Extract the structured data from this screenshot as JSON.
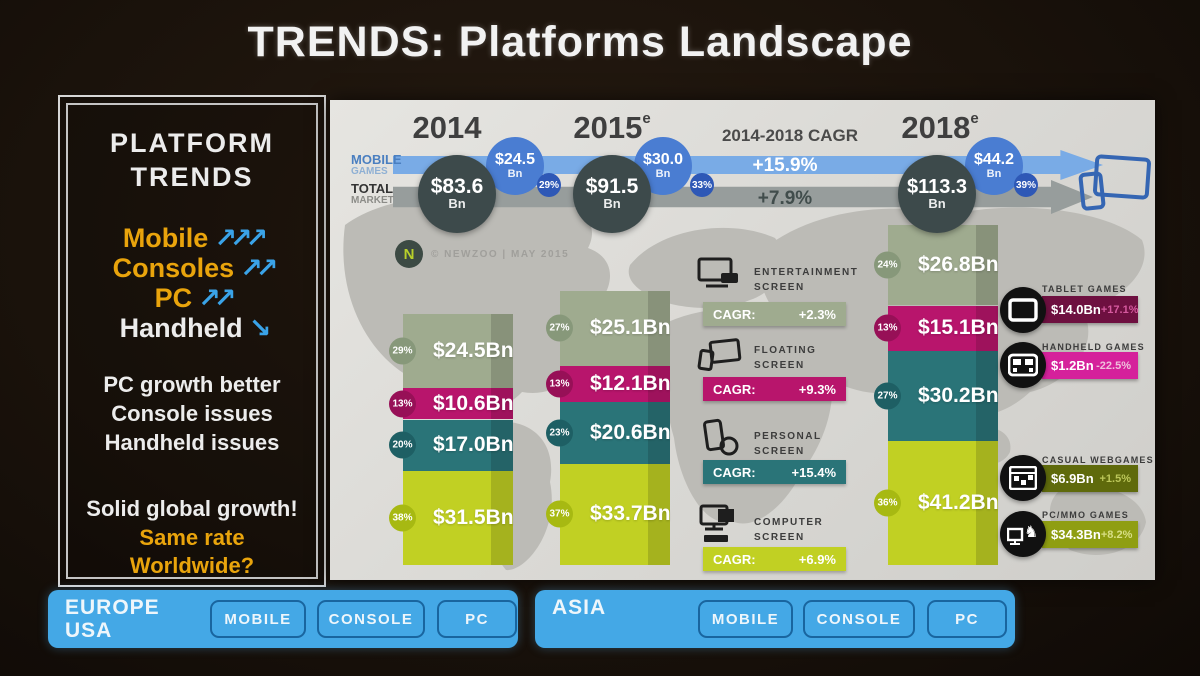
{
  "title": "TRENDS: Platforms Landscape",
  "sidebar": {
    "heading_line1": "PLATFORM",
    "heading_line2": "TRENDS",
    "platforms": [
      {
        "label": "Mobile",
        "style": "orange",
        "arrows": [
          "up",
          "up",
          "up"
        ]
      },
      {
        "label": "Consoles",
        "style": "orange",
        "arrows": [
          "up",
          "up"
        ]
      },
      {
        "label": "PC",
        "style": "orange",
        "arrows": [
          "up",
          "up"
        ]
      },
      {
        "label": "Handheld",
        "style": "white",
        "arrows": [
          "down"
        ]
      }
    ],
    "notes": [
      "PC growth better",
      "Console issues",
      "Handheld issues"
    ],
    "summary": [
      {
        "text": "Solid global growth!",
        "style": "white"
      },
      {
        "text": "Same rate",
        "style": "orange"
      },
      {
        "text": "Worldwide?",
        "style": "orange"
      }
    ]
  },
  "chart_data": {
    "type": "bar",
    "stacked": true,
    "source": "© NEWZOO | MAY 2015",
    "band_labels": {
      "mobile": [
        "MOBILE",
        "GAMES"
      ],
      "total": [
        "TOTAL",
        "MARKET"
      ]
    },
    "cagr_heading": "2014-2018 CAGR",
    "mobile_cagr": "+15.9%",
    "total_cagr": "+7.9%",
    "years": [
      {
        "label": "2014",
        "sup": "",
        "total_bn": 83.6,
        "total_display": "$83.6",
        "unit": "Bn",
        "mobile_display": "$24.5",
        "mobile_share": "29%"
      },
      {
        "label": "2015",
        "sup": "e",
        "total_bn": 91.5,
        "total_display": "$91.5",
        "unit": "Bn",
        "mobile_display": "$30.0",
        "mobile_share": "33%"
      },
      {
        "label": "2018",
        "sup": "e",
        "total_bn": 113.3,
        "total_display": "$113.3",
        "unit": "Bn",
        "mobile_display": "$44.2",
        "mobile_share": "39%"
      }
    ],
    "segments": [
      {
        "name": [
          "ENTERTAINMENT",
          "SCREEN"
        ],
        "icon": "entertainment-screen",
        "cagr_label": "CAGR:",
        "cagr": "+2.3%",
        "color": "#9fab8f",
        "badge_color": "#87987a",
        "values_bn": [
          24.5,
          25.1,
          26.8
        ],
        "labels": [
          "$24.5Bn",
          "$25.1Bn",
          "$26.8Bn"
        ],
        "shares": [
          "29%",
          "27%",
          "24%"
        ]
      },
      {
        "name": [
          "FLOATING",
          "SCREEN"
        ],
        "icon": "floating-screen",
        "cagr_label": "CAGR:",
        "cagr": "+9.3%",
        "color": "#b8156c",
        "badge_color": "#971057",
        "values_bn": [
          10.6,
          12.1,
          15.1
        ],
        "labels": [
          "$10.6Bn",
          "$12.1Bn",
          "$15.1Bn"
        ],
        "shares": [
          "13%",
          "13%",
          "13%"
        ]
      },
      {
        "name": [
          "PERSONAL",
          "SCREEN"
        ],
        "icon": "personal-screen",
        "cagr_label": "CAGR:",
        "cagr": "+15.4%",
        "color": "#2a7478",
        "badge_color": "#1e5f64",
        "values_bn": [
          17.0,
          20.6,
          30.2
        ],
        "labels": [
          "$17.0Bn",
          "$20.6Bn",
          "$30.2Bn"
        ],
        "shares": [
          "20%",
          "23%",
          "27%"
        ]
      },
      {
        "name": [
          "COMPUTER",
          "SCREEN"
        ],
        "icon": "computer-screen",
        "cagr_label": "CAGR:",
        "cagr": "+6.9%",
        "color": "#c1d023",
        "badge_color": "#a7b912",
        "values_bn": [
          31.5,
          33.7,
          41.2
        ],
        "labels": [
          "$31.5Bn",
          "$33.7Bn",
          "$41.2Bn"
        ],
        "shares": [
          "38%",
          "37%",
          "36%"
        ]
      }
    ],
    "side_stats": [
      {
        "name": "TABLET GAMES",
        "icon": "tablet-games",
        "value": "$14.0Bn",
        "growth": "+17.1%",
        "bar_color": "#6e1040",
        "growth_color": "#d65a9f"
      },
      {
        "name": "HANDHELD GAMES",
        "icon": "handheld-games",
        "value": "$1.2Bn",
        "growth": "-22.5%",
        "bar_color": "#d5219b",
        "growth_color": "#efc0dc"
      },
      {
        "name": "CASUAL WEBGAMES",
        "icon": "casual-webgames",
        "value": "$6.9Bn",
        "growth": "+1.5%",
        "bar_color": "#5f6a0c",
        "growth_color": "#bcc75a"
      },
      {
        "name": "PC/MMO GAMES",
        "icon": "pcmmo-games",
        "value": "$34.3Bn",
        "growth": "+8.2%",
        "bar_color": "#8f9e12",
        "growth_color": "#d8df86"
      }
    ],
    "colors": {
      "band_mobile": "#79abe6",
      "band_total": "#979d9c",
      "bubble_total": "#3d4a4b",
      "bubble_mobile": "#4a7dd2",
      "bubble_badge": "#2e58b6",
      "mobile_label": "#4a7fc0",
      "mobile_label2": "#8fb0d4",
      "total_label": "#333333",
      "total_label2": "#8c8c88",
      "footer_bar": "#44a8e6",
      "footer_border": "#19659f",
      "accent_orange": "#e9a40c",
      "arrow_blue": "#3aa3e8"
    }
  },
  "footer": {
    "left": {
      "region_lines": [
        "EUROPE",
        "USA"
      ],
      "buttons": [
        "MOBILE",
        "CONSOLE",
        "PC"
      ]
    },
    "right": {
      "region_lines": [
        "ASIA"
      ],
      "buttons": [
        "MOBILE",
        "CONSOLE",
        "PC"
      ]
    }
  }
}
